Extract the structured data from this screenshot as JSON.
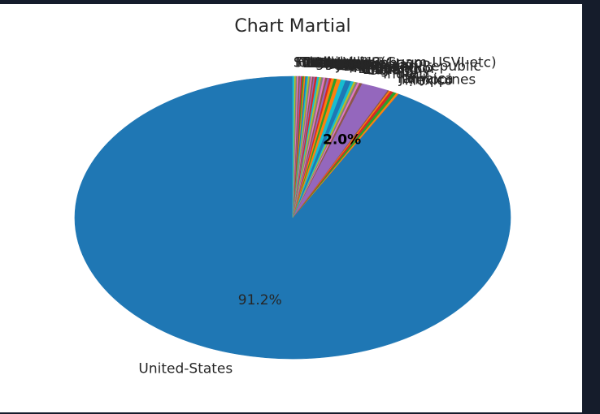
{
  "chart_data": {
    "type": "pie",
    "title": "Chart Martial",
    "start_angle_deg": 90,
    "slices": [
      {
        "label": "United-States",
        "value": 91.2,
        "pct_text": "91.2%",
        "color": "#1f77b4"
      },
      {
        "label": "?",
        "value": 0.19,
        "pct_text": "",
        "color": "#ff7f0e"
      },
      {
        "label": "Mexico",
        "value": 0.25,
        "pct_text": "",
        "color": "#2ca02c"
      },
      {
        "label": "Philippines",
        "value": 0.22,
        "pct_text": "",
        "color": "#d62728"
      },
      {
        "label": "Jamaica",
        "value": 0.12,
        "pct_text": "",
        "color": "#ff7f0e"
      },
      {
        "label": "Italy",
        "value": 0.1,
        "pct_text": "",
        "color": "#8c564b"
      },
      {
        "label": "India",
        "value": 2.0,
        "pct_text": "2.0%",
        "color": "#9467bd"
      },
      {
        "label": "Germany",
        "value": 0.2,
        "pct_text": "",
        "color": "#8c564b"
      },
      {
        "label": "Cuba",
        "value": 0.15,
        "pct_text": "",
        "color": "#e377c2"
      },
      {
        "label": "England",
        "value": 0.15,
        "pct_text": "",
        "color": "#7f7f7f"
      },
      {
        "label": "China",
        "value": 0.15,
        "pct_text": "",
        "color": "#bcbd22"
      },
      {
        "label": "El-Salvador",
        "value": 0.2,
        "pct_text": "",
        "color": "#17becf"
      },
      {
        "label": "Puerto-Rico",
        "value": 0.4,
        "pct_text": "",
        "color": "#1f77b4"
      },
      {
        "label": "Canada",
        "value": 0.35,
        "pct_text": "",
        "color": "#17becf"
      },
      {
        "label": "Dominican-Republic",
        "value": 0.3,
        "pct_text": "",
        "color": "#ff7f0e"
      },
      {
        "label": "South",
        "value": 0.2,
        "pct_text": "",
        "color": "#2ca02c"
      },
      {
        "label": "Japan",
        "value": 0.2,
        "pct_text": "",
        "color": "#ff7f0e"
      },
      {
        "label": "Columbia",
        "value": 0.15,
        "pct_text": "",
        "color": "#d62728"
      },
      {
        "label": "Guatemala",
        "value": 0.15,
        "pct_text": "",
        "color": "#9467bd"
      },
      {
        "label": "Poland",
        "value": 0.15,
        "pct_text": "",
        "color": "#8c564b"
      },
      {
        "label": "Vietnam",
        "value": 0.15,
        "pct_text": "",
        "color": "#e377c2"
      },
      {
        "label": "Haiti",
        "value": 0.15,
        "pct_text": "",
        "color": "#7f7f7f"
      },
      {
        "label": "Taiwan",
        "value": 0.15,
        "pct_text": "",
        "color": "#bcbd22"
      },
      {
        "label": "Iran",
        "value": 0.15,
        "pct_text": "",
        "color": "#17becf"
      },
      {
        "label": "Portugal",
        "value": 0.15,
        "pct_text": "",
        "color": "#d62728"
      },
      {
        "label": "Nicaragua",
        "value": 0.1,
        "pct_text": "",
        "color": "#9467bd"
      },
      {
        "label": "Peru",
        "value": 0.1,
        "pct_text": "",
        "color": "#8c564b"
      },
      {
        "label": "Greece",
        "value": 0.1,
        "pct_text": "",
        "color": "#e377c2"
      },
      {
        "label": "France",
        "value": 0.1,
        "pct_text": "",
        "color": "#7f7f7f"
      },
      {
        "label": "Ecuador",
        "value": 0.1,
        "pct_text": "",
        "color": "#bcbd22"
      },
      {
        "label": "Ireland",
        "value": 0.1,
        "pct_text": "",
        "color": "#17becf"
      },
      {
        "label": "Hong",
        "value": 0.1,
        "pct_text": "",
        "color": "#1f77b4"
      },
      {
        "label": "Cambodia",
        "value": 0.1,
        "pct_text": "",
        "color": "#ff7f0e"
      },
      {
        "label": "Trinadad&Tobago",
        "value": 0.1,
        "pct_text": "",
        "color": "#2ca02c"
      },
      {
        "label": "Laos",
        "value": 0.1,
        "pct_text": "",
        "color": "#d62728"
      },
      {
        "label": "Thailand",
        "value": 0.1,
        "pct_text": "",
        "color": "#9467bd"
      },
      {
        "label": "Yugoslavia",
        "value": 0.1,
        "pct_text": "",
        "color": "#8c564b"
      },
      {
        "label": "Outlying-US(Guam-USVI-etc)",
        "value": 0.1,
        "pct_text": "",
        "color": "#e377c2"
      },
      {
        "label": "Hungary",
        "value": 0.1,
        "pct_text": "",
        "color": "#7f7f7f"
      },
      {
        "label": "Honduras",
        "value": 0.1,
        "pct_text": "",
        "color": "#bcbd22"
      },
      {
        "label": "Scotland",
        "value": 0.1,
        "pct_text": "",
        "color": "#17becf"
      }
    ]
  }
}
